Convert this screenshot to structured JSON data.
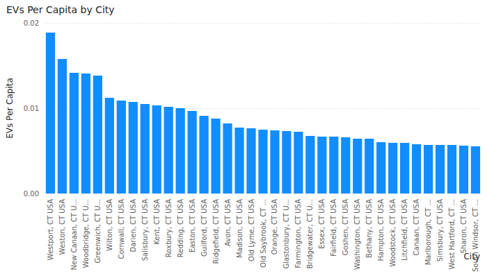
{
  "chart_data": {
    "type": "bar",
    "title": "EVs Per Capita by City",
    "x_label": "City",
    "y_label": "EVs Per Capita",
    "categories": [
      "Westport, CT USA",
      "Weston, CT USA",
      "New Canaan, CT U...",
      "Woodbridge, CT U...",
      "Greenwich, CT U...",
      "Wilton, CT USA",
      "Cornwall, CT USA",
      "Darien, CT USA",
      "Salisbury, CT USA",
      "Kent, CT USA",
      "Roxbury, CT USA",
      "Redding, CT USA",
      "Easton, CT USA",
      "Guilford, CT USA",
      "Ridgefield, CT USA",
      "Avon, CT USA",
      "Madison, CT USA",
      "Old Lyme, CT USA",
      "Old Saybrook, CT ...",
      "Orange, CT USA",
      "Glastonbury, CT U...",
      "Farmington, CT USA",
      "Bridgewater, CT U...",
      "Essex, CT USA",
      "Fairfield, CT USA",
      "Goshen, CT USA",
      "Washington, CT USA",
      "Bethany, CT USA",
      "Hampton, CT USA",
      "Woodstock, CT USA",
      "Litchfield, CT USA",
      "Canaan, CT USA",
      "Marlborough, CT ...",
      "Simsbury, CT USA",
      "West Hartford, CT ...",
      "Sharon, CT USA",
      "South Windsor, CT ..."
    ],
    "values": [
      0.01886,
      0.01577,
      0.01415,
      0.01407,
      0.01382,
      0.01122,
      0.01089,
      0.01073,
      0.01049,
      0.01033,
      0.01016,
      0.01,
      0.00967,
      0.0091,
      0.00878,
      0.00821,
      0.00772,
      0.00764,
      0.00748,
      0.0074,
      0.00732,
      0.00724,
      0.00675,
      0.00667,
      0.00667,
      0.00659,
      0.00642,
      0.00642,
      0.00602,
      0.00593,
      0.00593,
      0.00577,
      0.00569,
      0.00569,
      0.00569,
      0.00561,
      0.00553
    ],
    "color": "#118DFF",
    "ylim": [
      0,
      0.02
    ],
    "yticks": [
      {
        "value": 0,
        "label": "0.00"
      },
      0.01,
      0.02
    ],
    "grid": true
  }
}
